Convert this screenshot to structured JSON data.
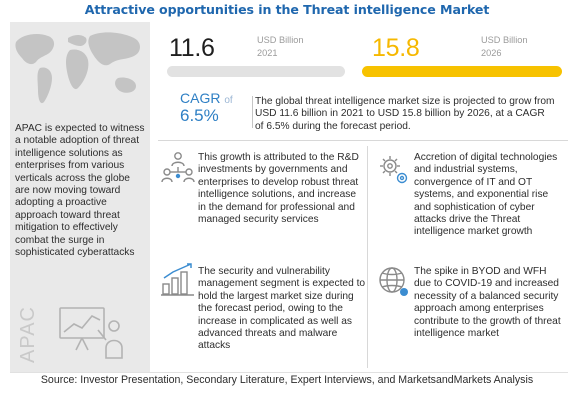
{
  "header": {
    "title": "Attractive opportunities in the Threat intelligence  Market"
  },
  "market": {
    "value_2021": "11.6",
    "unit_2021": "USD Billion",
    "year_2021": "2021",
    "value_2026": "15.8",
    "unit_2026": "USD Billion",
    "year_2026": "2026",
    "cagr_label": "CAGR",
    "cagr_of": "of",
    "cagr_value": "6.5%",
    "summary": "The global threat intelligence market size is projected to grow from USD 11.6 billion in 2021 to USD 15.8 billion by 2026, at a CAGR of 6.5% during the forecast period."
  },
  "left_panel": {
    "text": "APAC is expected to witness a notable adoption of threat intelligence solutions as enterprises from various verticals across the globe are now moving toward adopting a proactive approach toward threat mitigation to effectively combat the surge in sophisticated cyberattacks",
    "region_label": "APAC"
  },
  "blocks": [
    {
      "icon": "people-icon",
      "text": "This growth is attributed to the R&D investments by governments and enterprises to develop robust threat intelligence solutions, and increase in the demand for professional and managed security services"
    },
    {
      "icon": "gear-icon",
      "text": "Accretion of digital technologies and industrial systems, convergence of IT and OT systems, and exponential rise and sophistication of cyber attacks drive the Threat intelligence market growth"
    },
    {
      "icon": "bar-chart-icon",
      "text": "The security and vulnerability management segment is expected to hold the largest market size during the forecast period, owing to the increase in complicated as well as advanced threats and malware attacks"
    },
    {
      "icon": "globe-icon",
      "text": "The spike in BYOD and WFH due to COVID-19 and increased necessity of a balanced security approach among enterprises contribute to the growth of threat intelligence market"
    }
  ],
  "footer": {
    "source": "Source: Investor Presentation, Secondary Literature, Expert Interviews, and MarketsandMarkets Analysis"
  },
  "colors": {
    "title": "#1f67ae",
    "accent_yellow": "#f7c200",
    "cagr_blue": "#2e7fc4",
    "bar_grey": "#e2e2e2",
    "panel_grey": "#e9e9e9"
  }
}
